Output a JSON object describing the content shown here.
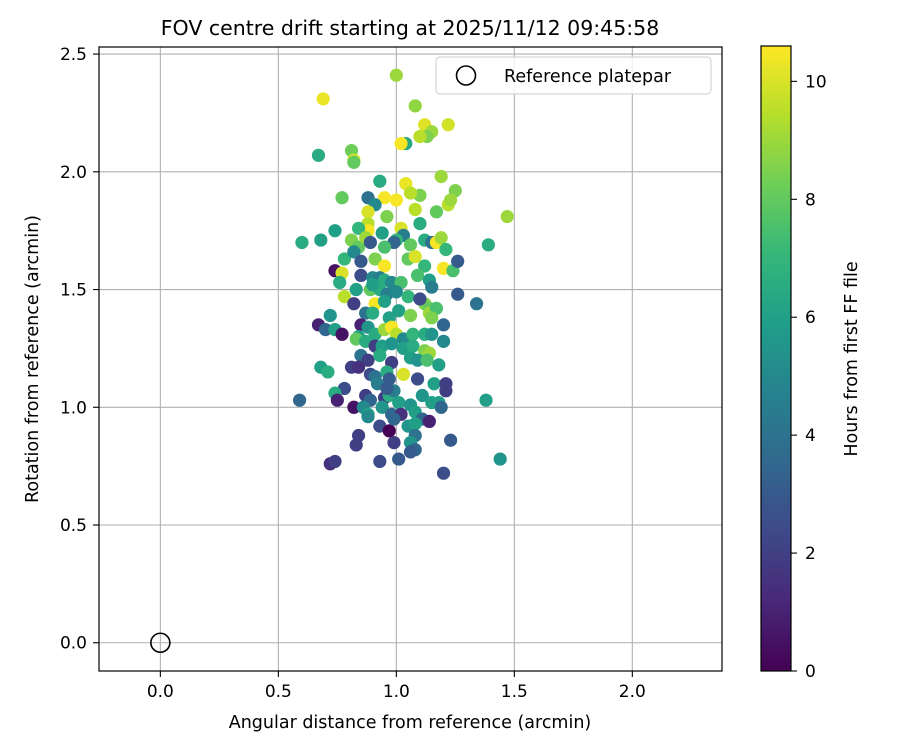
{
  "chart_data": {
    "type": "scatter",
    "title": "FOV centre drift starting at 2025/11/12 09:45:58",
    "xlabel": "Angular distance from reference (arcmin)",
    "ylabel": "Rotation from reference (arcmin)",
    "xlim": [
      -0.26,
      2.38
    ],
    "ylim": [
      -0.12,
      2.53
    ],
    "xticks": [
      0.0,
      0.5,
      1.0,
      1.5,
      2.0
    ],
    "xtick_labels": [
      "0.0",
      "0.5",
      "1.0",
      "1.5",
      "2.0"
    ],
    "yticks": [
      0.0,
      0.5,
      1.0,
      1.5,
      2.0,
      2.5
    ],
    "ytick_labels": [
      "0.0",
      "0.5",
      "1.0",
      "1.5",
      "2.0",
      "2.5"
    ],
    "grid": true,
    "colorbar": {
      "label": "Hours from first FF file",
      "colormap": "viridis",
      "min": 0,
      "max": 10.6,
      "ticks": [
        0,
        2,
        4,
        6,
        8,
        10
      ],
      "tick_labels": [
        "0",
        "2",
        "4",
        "6",
        "8",
        "10"
      ],
      "stops": [
        "#440154",
        "#482878",
        "#3e4989",
        "#31688e",
        "#26828e",
        "#1f9e89",
        "#35b779",
        "#6ece58",
        "#b5de2b",
        "#fde725"
      ]
    },
    "legend": {
      "label": "Reference platepar",
      "location": "top-right"
    },
    "reference": {
      "x": 0.0,
      "y": 0.0
    },
    "points": [
      [
        0.69,
        2.31,
        10.3
      ],
      [
        1.0,
        2.41,
        9.0
      ],
      [
        0.67,
        2.07,
        6.5
      ],
      [
        0.81,
        2.09,
        8.2
      ],
      [
        0.82,
        2.05,
        9.8
      ],
      [
        0.82,
        2.04,
        8.0
      ],
      [
        1.08,
        2.28,
        8.8
      ],
      [
        1.12,
        2.2,
        10.1
      ],
      [
        1.22,
        2.2,
        9.9
      ],
      [
        1.15,
        2.17,
        9.0
      ],
      [
        1.13,
        2.15,
        8.5
      ],
      [
        1.1,
        2.15,
        9.5
      ],
      [
        1.04,
        2.12,
        6.3
      ],
      [
        1.02,
        2.12,
        10.5
      ],
      [
        0.93,
        1.96,
        6.5
      ],
      [
        1.04,
        1.95,
        10.3
      ],
      [
        1.19,
        1.98,
        9.0
      ],
      [
        1.25,
        1.92,
        8.5
      ],
      [
        1.22,
        1.86,
        9.5
      ],
      [
        1.23,
        1.88,
        9.0
      ],
      [
        1.17,
        1.83,
        8.0
      ],
      [
        1.47,
        1.81,
        9.0
      ],
      [
        1.1,
        1.9,
        8.5
      ],
      [
        1.06,
        1.91,
        9.5
      ],
      [
        0.95,
        1.89,
        10.5
      ],
      [
        0.88,
        1.89,
        4.0
      ],
      [
        0.77,
        1.89,
        8.0
      ],
      [
        0.91,
        1.86,
        5.0
      ],
      [
        1.0,
        1.88,
        10.5
      ],
      [
        1.08,
        1.84,
        9.5
      ],
      [
        0.96,
        1.81,
        8.5
      ],
      [
        0.88,
        1.83,
        10.0
      ],
      [
        0.88,
        1.78,
        9.5
      ],
      [
        0.88,
        1.75,
        10.5
      ],
      [
        0.84,
        1.76,
        7.0
      ],
      [
        0.74,
        1.75,
        6.0
      ],
      [
        0.6,
        1.7,
        6.5
      ],
      [
        0.68,
        1.71,
        6.0
      ],
      [
        0.81,
        1.71,
        8.5
      ],
      [
        0.84,
        1.68,
        8.0
      ],
      [
        0.87,
        1.72,
        9.0
      ],
      [
        0.89,
        1.7,
        3.0
      ],
      [
        0.94,
        1.74,
        6.0
      ],
      [
        1.02,
        1.76,
        10.0
      ],
      [
        1.03,
        1.73,
        4.5
      ],
      [
        1.0,
        1.71,
        7.0
      ],
      [
        0.99,
        1.7,
        3.5
      ],
      [
        1.06,
        1.69,
        8.0
      ],
      [
        1.12,
        1.71,
        6.5
      ],
      [
        1.15,
        1.7,
        4.0
      ],
      [
        1.17,
        1.7,
        10.5
      ],
      [
        1.19,
        1.72,
        9.0
      ],
      [
        1.21,
        1.67,
        7.0
      ],
      [
        1.39,
        1.69,
        6.5
      ],
      [
        0.78,
        1.63,
        7.0
      ],
      [
        0.82,
        1.66,
        5.0
      ],
      [
        0.85,
        1.62,
        3.0
      ],
      [
        0.91,
        1.63,
        8.5
      ],
      [
        0.95,
        1.6,
        10.5
      ],
      [
        1.05,
        1.63,
        8.0
      ],
      [
        1.08,
        1.64,
        10.0
      ],
      [
        1.12,
        1.6,
        7.0
      ],
      [
        1.2,
        1.59,
        10.5
      ],
      [
        1.24,
        1.58,
        7.5
      ],
      [
        1.26,
        1.62,
        3.0
      ],
      [
        0.74,
        1.58,
        0.5
      ],
      [
        0.77,
        1.57,
        10.0
      ],
      [
        0.76,
        1.53,
        6.5
      ],
      [
        0.85,
        1.56,
        2.5
      ],
      [
        0.9,
        1.55,
        5.0
      ],
      [
        0.93,
        1.55,
        4.5
      ],
      [
        0.95,
        1.54,
        6.5
      ],
      [
        0.98,
        1.53,
        5.0
      ],
      [
        1.02,
        1.53,
        7.5
      ],
      [
        1.09,
        1.56,
        7.5
      ],
      [
        1.14,
        1.54,
        6.0
      ],
      [
        1.15,
        1.51,
        4.5
      ],
      [
        0.83,
        1.5,
        6.0
      ],
      [
        0.89,
        1.5,
        8.0
      ],
      [
        0.93,
        1.5,
        6.5
      ],
      [
        0.96,
        1.48,
        4.5
      ],
      [
        1.0,
        1.49,
        5.0
      ],
      [
        1.26,
        1.48,
        3.0
      ],
      [
        0.78,
        1.47,
        9.5
      ],
      [
        0.82,
        1.44,
        2.0
      ],
      [
        0.91,
        1.44,
        10.5
      ],
      [
        0.95,
        1.45,
        6.0
      ],
      [
        1.12,
        1.44,
        8.5
      ],
      [
        1.14,
        1.42,
        8.0
      ],
      [
        1.14,
        1.4,
        9.0
      ],
      [
        1.17,
        1.42,
        7.5
      ],
      [
        1.34,
        1.44,
        4.0
      ],
      [
        0.87,
        1.4,
        4.0
      ],
      [
        0.9,
        1.4,
        6.5
      ],
      [
        0.97,
        1.38,
        6.0
      ],
      [
        1.01,
        1.41,
        6.0
      ],
      [
        1.06,
        1.39,
        8.5
      ],
      [
        1.15,
        1.38,
        8.5
      ],
      [
        0.72,
        1.39,
        5.5
      ],
      [
        0.67,
        1.35,
        1.0
      ],
      [
        0.7,
        1.33,
        3.5
      ],
      [
        0.74,
        1.33,
        6.0
      ],
      [
        0.77,
        1.31,
        0.5
      ],
      [
        0.85,
        1.35,
        1.0
      ],
      [
        0.88,
        1.34,
        5.5
      ],
      [
        0.91,
        1.31,
        6.5
      ],
      [
        0.95,
        1.33,
        9.0
      ],
      [
        0.98,
        1.34,
        10.5
      ],
      [
        1.0,
        1.31,
        9.5
      ],
      [
        1.03,
        1.29,
        5.0
      ],
      [
        1.07,
        1.31,
        7.0
      ],
      [
        1.12,
        1.31,
        6.5
      ],
      [
        1.15,
        1.31,
        5.5
      ],
      [
        1.2,
        1.35,
        3.5
      ],
      [
        0.84,
        1.3,
        6.0
      ],
      [
        0.83,
        1.29,
        8.0
      ],
      [
        0.87,
        1.28,
        6.5
      ],
      [
        0.91,
        1.26,
        2.0
      ],
      [
        0.94,
        1.26,
        6.0
      ],
      [
        0.98,
        1.27,
        5.5
      ],
      [
        1.03,
        1.25,
        6.0
      ],
      [
        1.07,
        1.26,
        6.5
      ],
      [
        1.12,
        1.24,
        8.5
      ],
      [
        1.14,
        1.23,
        9.0
      ],
      [
        1.2,
        1.28,
        5.0
      ],
      [
        0.85,
        1.22,
        4.0
      ],
      [
        0.88,
        1.2,
        2.0
      ],
      [
        0.93,
        1.22,
        6.5
      ],
      [
        0.98,
        1.19,
        2.0
      ],
      [
        1.06,
        1.21,
        6.0
      ],
      [
        1.09,
        1.2,
        5.5
      ],
      [
        1.13,
        1.2,
        7.5
      ],
      [
        1.18,
        1.18,
        6.0
      ],
      [
        0.68,
        1.17,
        6.0
      ],
      [
        0.71,
        1.15,
        6.5
      ],
      [
        0.81,
        1.17,
        2.0
      ],
      [
        0.84,
        1.17,
        1.5
      ],
      [
        0.89,
        1.14,
        2.5
      ],
      [
        0.91,
        1.13,
        4.0
      ],
      [
        0.96,
        1.15,
        6.5
      ],
      [
        1.03,
        1.14,
        10.0
      ],
      [
        1.09,
        1.12,
        2.5
      ],
      [
        1.16,
        1.1,
        6.0
      ],
      [
        1.21,
        1.1,
        2.0
      ],
      [
        0.78,
        1.08,
        2.5
      ],
      [
        0.74,
        1.06,
        6.5
      ],
      [
        0.75,
        1.03,
        1.0
      ],
      [
        0.87,
        1.05,
        2.0
      ],
      [
        0.89,
        1.03,
        3.5
      ],
      [
        0.95,
        1.04,
        2.0
      ],
      [
        0.97,
        1.05,
        6.5
      ],
      [
        0.99,
        1.07,
        4.5
      ],
      [
        1.01,
        1.02,
        6.0
      ],
      [
        1.06,
        1.01,
        5.5
      ],
      [
        1.11,
        1.05,
        5.5
      ],
      [
        1.15,
        1.02,
        6.0
      ],
      [
        1.18,
        1.02,
        6.0
      ],
      [
        1.19,
        1.0,
        3.5
      ],
      [
        1.21,
        1.07,
        2.0
      ],
      [
        1.38,
        1.03,
        6.0
      ],
      [
        0.59,
        1.03,
        3.5
      ],
      [
        0.82,
        1.0,
        0.5
      ],
      [
        0.86,
        1.0,
        5.0
      ],
      [
        0.88,
        0.97,
        6.0
      ],
      [
        0.94,
        1.0,
        5.5
      ],
      [
        0.98,
        0.97,
        3.5
      ],
      [
        1.02,
        0.97,
        1.5
      ],
      [
        1.08,
        0.98,
        6.0
      ],
      [
        1.11,
        0.95,
        3.5
      ],
      [
        1.14,
        0.94,
        1.0
      ],
      [
        0.88,
        0.96,
        5.0
      ],
      [
        0.93,
        0.92,
        2.5
      ],
      [
        0.97,
        0.9,
        0.0
      ],
      [
        0.99,
        0.95,
        3.5
      ],
      [
        1.05,
        0.92,
        5.5
      ],
      [
        1.08,
        0.93,
        6.0
      ],
      [
        1.08,
        0.88,
        4.0
      ],
      [
        0.84,
        0.88,
        2.0
      ],
      [
        0.83,
        0.84,
        2.0
      ],
      [
        0.99,
        0.85,
        2.0
      ],
      [
        1.06,
        0.85,
        5.5
      ],
      [
        1.08,
        0.82,
        3.5
      ],
      [
        1.06,
        0.81,
        3.0
      ],
      [
        1.23,
        0.86,
        3.0
      ],
      [
        0.72,
        0.76,
        1.5
      ],
      [
        0.74,
        0.77,
        2.0
      ],
      [
        0.93,
        0.77,
        2.5
      ],
      [
        1.01,
        0.78,
        3.0
      ],
      [
        1.2,
        0.72,
        2.5
      ],
      [
        1.44,
        0.78,
        5.5
      ],
      [
        0.9,
        1.52,
        6.0
      ],
      [
        1.05,
        1.47,
        7.0
      ],
      [
        0.95,
        1.68,
        7.5
      ],
      [
        1.1,
        1.78,
        6.5
      ],
      [
        0.97,
        1.12,
        3.0
      ],
      [
        1.1,
        1.46,
        2.5
      ],
      [
        0.92,
        1.1,
        4.5
      ],
      [
        0.96,
        1.08,
        3.0
      ]
    ]
  }
}
